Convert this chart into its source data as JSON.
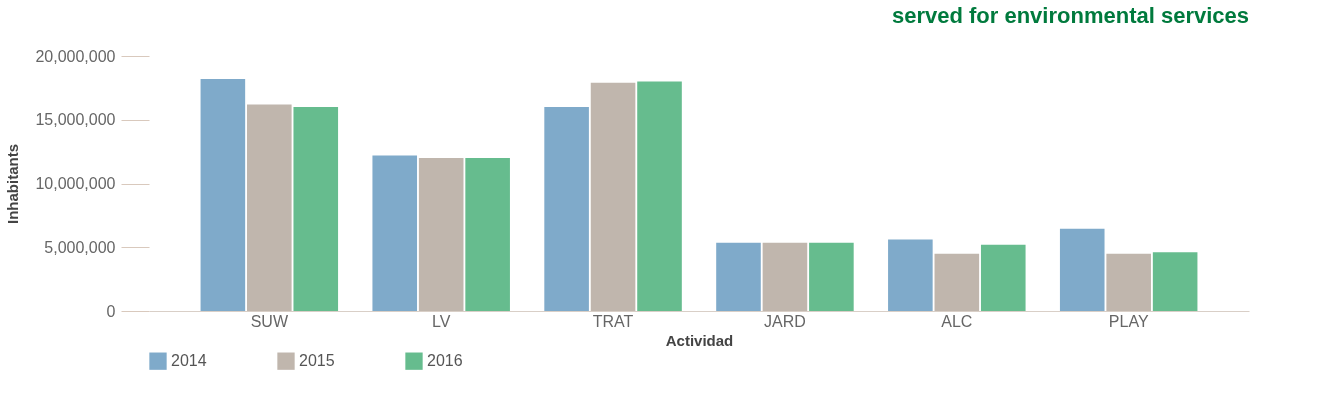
{
  "chart_data": {
    "type": "bar",
    "title": "served for environmental services",
    "xlabel": "Actividad",
    "ylabel": "Inhabitants",
    "categories": [
      "SUW",
      "LV",
      "TRAT",
      "JARD",
      "ALC",
      "PLAY"
    ],
    "series": [
      {
        "name": "2014",
        "color": "#7faaca",
        "values": [
          18200000,
          12200000,
          16000000,
          5350000,
          5600000,
          6450000
        ]
      },
      {
        "name": "2015",
        "color": "#c0b6ad",
        "values": [
          16200000,
          12000000,
          17900000,
          5350000,
          4500000,
          4500000
        ]
      },
      {
        "name": "2016",
        "color": "#66bc8e",
        "values": [
          16000000,
          12000000,
          18000000,
          5350000,
          5200000,
          4600000
        ]
      }
    ],
    "ylim": [
      0,
      20000000
    ],
    "yticks": [
      0,
      {
        "value": 5000000,
        "label": "5,000,000"
      },
      {
        "value": 10000000,
        "label": "10,000,000"
      },
      {
        "value": 15000000,
        "label": "15,000,000"
      },
      {
        "value": 20000000,
        "label": "20,000,000"
      }
    ],
    "grid": false,
    "legend": "bottom left"
  }
}
